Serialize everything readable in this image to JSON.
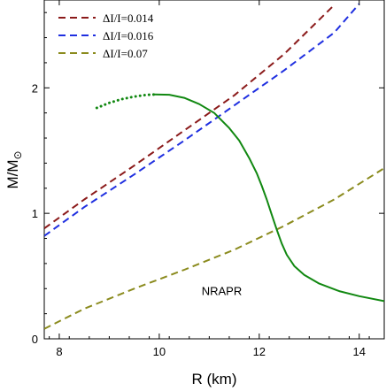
{
  "chart_data": {
    "type": "line",
    "xlabel": "R (km)",
    "ylabel_main": "M/M",
    "ylabel_sub": "⊙",
    "xlim": [
      7.7,
      14.5
    ],
    "ylim": [
      0,
      2.7
    ],
    "xticks": [
      8,
      10,
      12,
      14
    ],
    "yticks": [
      0,
      1,
      2
    ],
    "xtick_labels": [
      "8",
      "10",
      "12",
      "14"
    ],
    "ytick_labels": [
      "0",
      "1",
      "2"
    ],
    "grid": false,
    "legend_position": "top-left",
    "annotation": "NRAPR",
    "annotation_at": {
      "x": 11.25,
      "y": 0.35
    },
    "series": [
      {
        "name": "ΔI/I=0.014",
        "color": "#8b1a1a",
        "style": "dashed",
        "x": [
          7.7,
          8.5,
          9.5,
          10.5,
          11.5,
          12.5,
          13.5
        ],
        "y": [
          0.88,
          1.11,
          1.38,
          1.66,
          1.94,
          2.27,
          2.66
        ]
      },
      {
        "name": "ΔI/I=0.016",
        "color": "#1f2fe0",
        "style": "dashed",
        "x": [
          7.7,
          8.5,
          9.5,
          10.5,
          11.5,
          12.5,
          13.5,
          14.0
        ],
        "y": [
          0.82,
          1.05,
          1.31,
          1.58,
          1.86,
          2.14,
          2.44,
          2.67
        ]
      },
      {
        "name": "ΔI/I=0.07",
        "color": "#8b8b1e",
        "style": "dashed",
        "x": [
          7.7,
          8.5,
          9.5,
          10.5,
          11.5,
          12.5,
          13.5,
          14.5
        ],
        "y": [
          0.08,
          0.24,
          0.4,
          0.55,
          0.71,
          0.9,
          1.11,
          1.36
        ]
      },
      {
        "color": "#118811",
        "style": "dotted",
        "x": [
          8.75,
          9.0,
          9.25,
          9.5,
          9.75,
          9.9
        ],
        "y": [
          1.84,
          1.88,
          1.91,
          1.93,
          1.944,
          1.947
        ]
      },
      {
        "color": "#118811",
        "style": "solid",
        "x": [
          9.9,
          10.2,
          10.5,
          10.8,
          11.1,
          11.4,
          11.6,
          11.8,
          11.95,
          12.05,
          12.15,
          12.25,
          12.35,
          12.45,
          12.55,
          12.7,
          12.9,
          13.2,
          13.6,
          14.0,
          14.5
        ],
        "y": [
          1.947,
          1.945,
          1.92,
          1.87,
          1.8,
          1.68,
          1.58,
          1.44,
          1.32,
          1.22,
          1.11,
          0.99,
          0.87,
          0.76,
          0.67,
          0.58,
          0.51,
          0.44,
          0.38,
          0.34,
          0.3
        ]
      }
    ]
  }
}
